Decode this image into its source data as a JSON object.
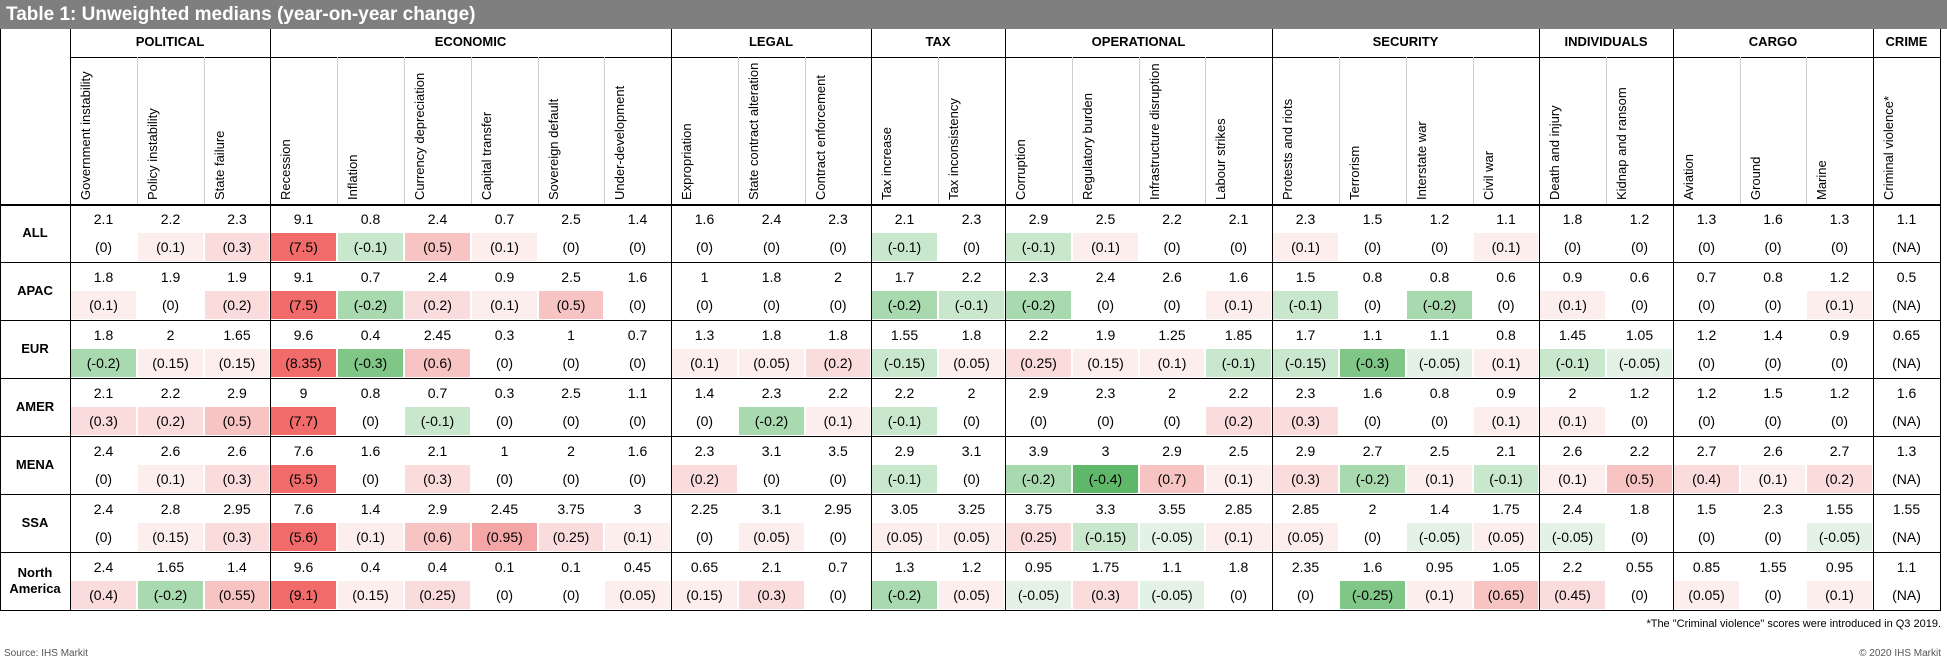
{
  "title": "Table 1: Unweighted medians (year-on-year change)",
  "groups": [
    {
      "name": "POLITICAL",
      "cols": [
        "Government instability",
        "Policy instability",
        "State failure"
      ]
    },
    {
      "name": "ECONOMIC",
      "cols": [
        "Recession",
        "Inflation",
        "Currency depreciation",
        "Capital transfer",
        "Sovereign default",
        "Under-development"
      ]
    },
    {
      "name": "LEGAL",
      "cols": [
        "Expropriation",
        "State contract alteration",
        "Contract enforcement"
      ]
    },
    {
      "name": "TAX",
      "cols": [
        "Tax increase",
        "Tax inconsistency"
      ]
    },
    {
      "name": "OPERATIONAL",
      "cols": [
        "Corruption",
        "Regulatory burden",
        "Infrastructure disruption",
        "Labour strikes"
      ]
    },
    {
      "name": "SECURITY",
      "cols": [
        "Protests and riots",
        "Terrorism",
        "Interstate war",
        "Civil war"
      ]
    },
    {
      "name": "INDIVIDUALS",
      "cols": [
        "Death and injury",
        "Kidnap and ransom"
      ]
    },
    {
      "name": "CARGO",
      "cols": [
        "Aviation",
        "Ground",
        "Marine"
      ]
    },
    {
      "name": "CRIME",
      "cols": [
        "Criminal violence*"
      ]
    }
  ],
  "rows": [
    {
      "label": "ALL",
      "values": [
        "2.1",
        "2.2",
        "2.3",
        "9.1",
        "0.8",
        "2.4",
        "0.7",
        "2.5",
        "1.4",
        "1.6",
        "2.4",
        "2.3",
        "2.1",
        "2.3",
        "2.9",
        "2.5",
        "2.2",
        "2.1",
        "2.3",
        "1.5",
        "1.2",
        "1.1",
        "1.8",
        "1.2",
        "1.3",
        "1.6",
        "1.3",
        "1.1"
      ],
      "changes": [
        "(0)",
        "(0.1)",
        "(0.3)",
        "(7.5)",
        "(-0.1)",
        "(0.5)",
        "(0.1)",
        "(0)",
        "(0)",
        "(0)",
        "(0)",
        "(0)",
        "(-0.1)",
        "(0)",
        "(-0.1)",
        "(0.1)",
        "(0)",
        "(0)",
        "(0.1)",
        "(0)",
        "(0)",
        "(0.1)",
        "(0)",
        "(0)",
        "(0)",
        "(0)",
        "(0)",
        "(NA)"
      ]
    },
    {
      "label": "APAC",
      "values": [
        "1.8",
        "1.9",
        "1.9",
        "9.1",
        "0.7",
        "2.4",
        "0.9",
        "2.5",
        "1.6",
        "1",
        "1.8",
        "2",
        "1.7",
        "2.2",
        "2.3",
        "2.4",
        "2.6",
        "1.6",
        "1.5",
        "0.8",
        "0.8",
        "0.6",
        "0.9",
        "0.6",
        "0.7",
        "0.8",
        "1.2",
        "0.5"
      ],
      "changes": [
        "(0.1)",
        "(0)",
        "(0.2)",
        "(7.5)",
        "(-0.2)",
        "(0.2)",
        "(0.1)",
        "(0.5)",
        "(0)",
        "(0)",
        "(0)",
        "(0)",
        "(-0.2)",
        "(-0.1)",
        "(-0.2)",
        "(0)",
        "(0)",
        "(0.1)",
        "(-0.1)",
        "(0)",
        "(-0.2)",
        "(0)",
        "(0.1)",
        "(0)",
        "(0)",
        "(0)",
        "(0.1)",
        "(NA)"
      ]
    },
    {
      "label": "EUR",
      "values": [
        "1.8",
        "2",
        "1.65",
        "9.6",
        "0.4",
        "2.45",
        "0.3",
        "1",
        "0.7",
        "1.3",
        "1.8",
        "1.8",
        "1.55",
        "1.8",
        "2.2",
        "1.9",
        "1.25",
        "1.85",
        "1.7",
        "1.1",
        "1.1",
        "0.8",
        "1.45",
        "1.05",
        "1.2",
        "1.4",
        "0.9",
        "0.65"
      ],
      "changes": [
        "(-0.2)",
        "(0.15)",
        "(0.15)",
        "(8.35)",
        "(-0.3)",
        "(0.6)",
        "(0)",
        "(0)",
        "(0)",
        "(0.1)",
        "(0.05)",
        "(0.2)",
        "(-0.15)",
        "(0.05)",
        "(0.25)",
        "(0.15)",
        "(0.1)",
        "(-0.1)",
        "(-0.15)",
        "(-0.3)",
        "(-0.05)",
        "(0.1)",
        "(-0.1)",
        "(-0.05)",
        "(0)",
        "(0)",
        "(0)",
        "(NA)"
      ]
    },
    {
      "label": "AMER",
      "values": [
        "2.1",
        "2.2",
        "2.9",
        "9",
        "0.8",
        "0.7",
        "0.3",
        "2.5",
        "1.1",
        "1.4",
        "2.3",
        "2.2",
        "2.2",
        "2",
        "2.9",
        "2.3",
        "2",
        "2.2",
        "2.3",
        "1.6",
        "0.8",
        "0.9",
        "2",
        "1.2",
        "1.2",
        "1.5",
        "1.2",
        "1.6"
      ],
      "changes": [
        "(0.3)",
        "(0.2)",
        "(0.5)",
        "(7.7)",
        "(0)",
        "(-0.1)",
        "(0)",
        "(0)",
        "(0)",
        "(0)",
        "(-0.2)",
        "(0.1)",
        "(-0.1)",
        "(0)",
        "(0)",
        "(0)",
        "(0)",
        "(0.2)",
        "(0.3)",
        "(0)",
        "(0)",
        "(0.1)",
        "(0.1)",
        "(0)",
        "(0)",
        "(0)",
        "(0)",
        "(NA)"
      ]
    },
    {
      "label": "MENA",
      "values": [
        "2.4",
        "2.6",
        "2.6",
        "7.6",
        "1.6",
        "2.1",
        "1",
        "2",
        "1.6",
        "2.3",
        "3.1",
        "3.5",
        "2.9",
        "3.1",
        "3.9",
        "3",
        "2.9",
        "2.5",
        "2.9",
        "2.7",
        "2.5",
        "2.1",
        "2.6",
        "2.2",
        "2.7",
        "2.6",
        "2.7",
        "1.3"
      ],
      "changes": [
        "(0)",
        "(0.1)",
        "(0.3)",
        "(5.5)",
        "(0)",
        "(0.3)",
        "(0)",
        "(0)",
        "(0)",
        "(0.2)",
        "(0)",
        "(0)",
        "(-0.1)",
        "(0)",
        "(-0.2)",
        "(-0.4)",
        "(0.7)",
        "(0.1)",
        "(0.3)",
        "(-0.2)",
        "(0.1)",
        "(-0.1)",
        "(0.1)",
        "(0.5)",
        "(0.4)",
        "(0.1)",
        "(0.2)",
        "(NA)"
      ]
    },
    {
      "label": "SSA",
      "values": [
        "2.4",
        "2.8",
        "2.95",
        "7.6",
        "1.4",
        "2.9",
        "2.45",
        "3.75",
        "3",
        "2.25",
        "3.1",
        "2.95",
        "3.05",
        "3.25",
        "3.75",
        "3.3",
        "3.55",
        "2.85",
        "2.85",
        "2",
        "1.4",
        "1.75",
        "2.4",
        "1.8",
        "1.5",
        "2.3",
        "1.55",
        "1.55"
      ],
      "changes": [
        "(0)",
        "(0.15)",
        "(0.3)",
        "(5.6)",
        "(0.1)",
        "(0.6)",
        "(0.95)",
        "(0.25)",
        "(0.1)",
        "(0)",
        "(0.05)",
        "(0)",
        "(0.05)",
        "(0.05)",
        "(0.25)",
        "(-0.15)",
        "(-0.05)",
        "(0.1)",
        "(0.05)",
        "(0)",
        "(-0.05)",
        "(0.05)",
        "(-0.05)",
        "(0)",
        "(0)",
        "(0)",
        "(-0.05)",
        "(NA)"
      ]
    },
    {
      "label": "North America",
      "values": [
        "2.4",
        "1.65",
        "1.4",
        "9.6",
        "0.4",
        "0.4",
        "0.1",
        "0.1",
        "0.45",
        "0.65",
        "2.1",
        "0.7",
        "1.3",
        "1.2",
        "0.95",
        "1.75",
        "1.1",
        "1.8",
        "2.35",
        "1.6",
        "0.95",
        "1.05",
        "2.2",
        "0.55",
        "0.85",
        "1.55",
        "0.95",
        "1.1"
      ],
      "changes": [
        "(0.4)",
        "(-0.2)",
        "(0.55)",
        "(9.1)",
        "(0.15)",
        "(0.25)",
        "(0)",
        "(0)",
        "(0.05)",
        "(0.15)",
        "(0.3)",
        "(0)",
        "(-0.2)",
        "(0.05)",
        "(-0.05)",
        "(0.3)",
        "(-0.05)",
        "(0)",
        "(0)",
        "(-0.25)",
        "(0.1)",
        "(0.65)",
        "(0.45)",
        "(0)",
        "(0.05)",
        "(0)",
        "(0.1)",
        "(NA)"
      ]
    }
  ],
  "footnote": "*The \"Criminal violence\" scores were introduced in Q3 2019.",
  "source": "Source: IHS Markit",
  "copyright": "© 2020 IHS Markit"
}
